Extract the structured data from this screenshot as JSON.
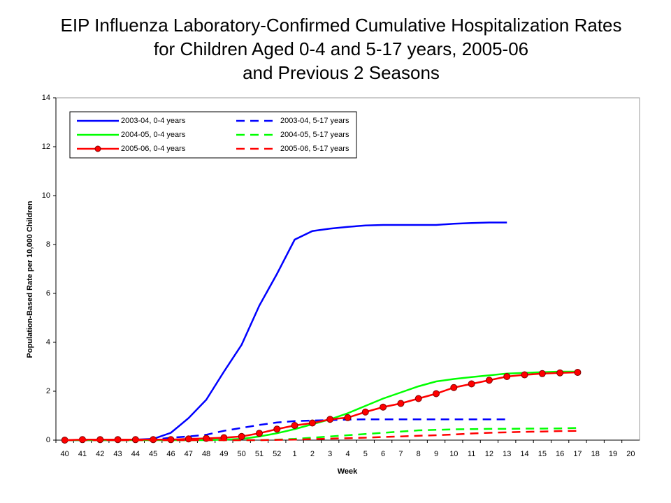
{
  "chart_data": {
    "type": "line",
    "title": [
      "EIP Influenza Laboratory-Confirmed Cumulative Hospitalization Rates",
      "for Children Aged 0-4 and 5-17 years, 2005-06",
      "and Previous 2 Seasons"
    ],
    "x_label": "Week",
    "y_label": "Population-Based Rate per 10,000 Children",
    "categories": [
      "40",
      "41",
      "42",
      "43",
      "44",
      "45",
      "46",
      "47",
      "48",
      "49",
      "50",
      "51",
      "52",
      "1",
      "2",
      "3",
      "4",
      "5",
      "6",
      "7",
      "8",
      "9",
      "10",
      "11",
      "12",
      "13",
      "14",
      "15",
      "16",
      "17",
      "18",
      "19",
      "20"
    ],
    "ylim": [
      0,
      14
    ],
    "yticks": [
      0,
      2,
      4,
      6,
      8,
      10,
      12,
      14
    ],
    "series": [
      {
        "name": "2003-04, 0-4 years",
        "color": "#0000ff",
        "dash": false,
        "marker": false,
        "values": [
          0,
          0,
          0,
          0,
          0.02,
          0.05,
          0.3,
          0.9,
          1.65,
          2.8,
          3.9,
          5.5,
          6.8,
          8.2,
          8.55,
          8.65,
          8.72,
          8.78,
          8.8,
          8.8,
          8.8,
          8.8,
          8.85,
          8.88,
          8.9,
          8.9,
          null,
          null,
          null,
          null,
          null,
          null,
          null
        ]
      },
      {
        "name": "2003-04, 5-17 years",
        "color": "#0000ff",
        "dash": true,
        "marker": false,
        "values": [
          0,
          0,
          0,
          0,
          0,
          0.02,
          0.1,
          0.15,
          0.22,
          0.38,
          0.5,
          0.62,
          0.72,
          0.78,
          0.8,
          0.82,
          0.84,
          0.85,
          0.85,
          0.85,
          0.85,
          0.85,
          0.85,
          0.85,
          0.85,
          0.85,
          null,
          null,
          null,
          null,
          null,
          null,
          null
        ]
      },
      {
        "name": "2004-05, 0-4 years",
        "color": "#00ff00",
        "dash": false,
        "marker": false,
        "values": [
          0,
          0,
          0,
          0,
          0,
          0,
          0,
          0,
          0,
          0.02,
          0.05,
          0.15,
          0.28,
          0.45,
          0.65,
          0.85,
          1.1,
          1.4,
          1.7,
          1.95,
          2.2,
          2.4,
          2.5,
          2.58,
          2.65,
          2.72,
          2.75,
          2.78,
          2.8,
          2.8,
          null,
          null,
          null
        ]
      },
      {
        "name": "2004-05, 5-17 years",
        "color": "#00ff00",
        "dash": true,
        "marker": false,
        "values": [
          0,
          0,
          0,
          0,
          0,
          0,
          0,
          0,
          0,
          0,
          0,
          0,
          0.02,
          0.05,
          0.1,
          0.15,
          0.2,
          0.25,
          0.3,
          0.35,
          0.4,
          0.42,
          0.44,
          0.45,
          0.46,
          0.46,
          0.47,
          0.47,
          0.48,
          0.5,
          null,
          null,
          null
        ]
      },
      {
        "name": "2005-06, 0-4 years",
        "color": "#ff0000",
        "dash": false,
        "marker": true,
        "values": [
          0,
          0.02,
          0.02,
          0.02,
          0.02,
          0.02,
          0.02,
          0.05,
          0.07,
          0.1,
          0.15,
          0.28,
          0.45,
          0.6,
          0.7,
          0.85,
          0.92,
          1.15,
          1.35,
          1.5,
          1.7,
          1.9,
          2.15,
          2.3,
          2.45,
          2.6,
          2.67,
          2.72,
          2.75,
          2.77,
          null,
          null,
          null
        ]
      },
      {
        "name": "2005-06, 5-17 years",
        "color": "#ff0000",
        "dash": true,
        "marker": false,
        "values": [
          0,
          0,
          0,
          0,
          0,
          0,
          0,
          0,
          0,
          0,
          0,
          0,
          0.01,
          0.02,
          0.04,
          0.06,
          0.08,
          0.1,
          0.13,
          0.15,
          0.18,
          0.2,
          0.23,
          0.27,
          0.3,
          0.32,
          0.34,
          0.35,
          0.37,
          0.38,
          null,
          null,
          null
        ]
      }
    ]
  }
}
